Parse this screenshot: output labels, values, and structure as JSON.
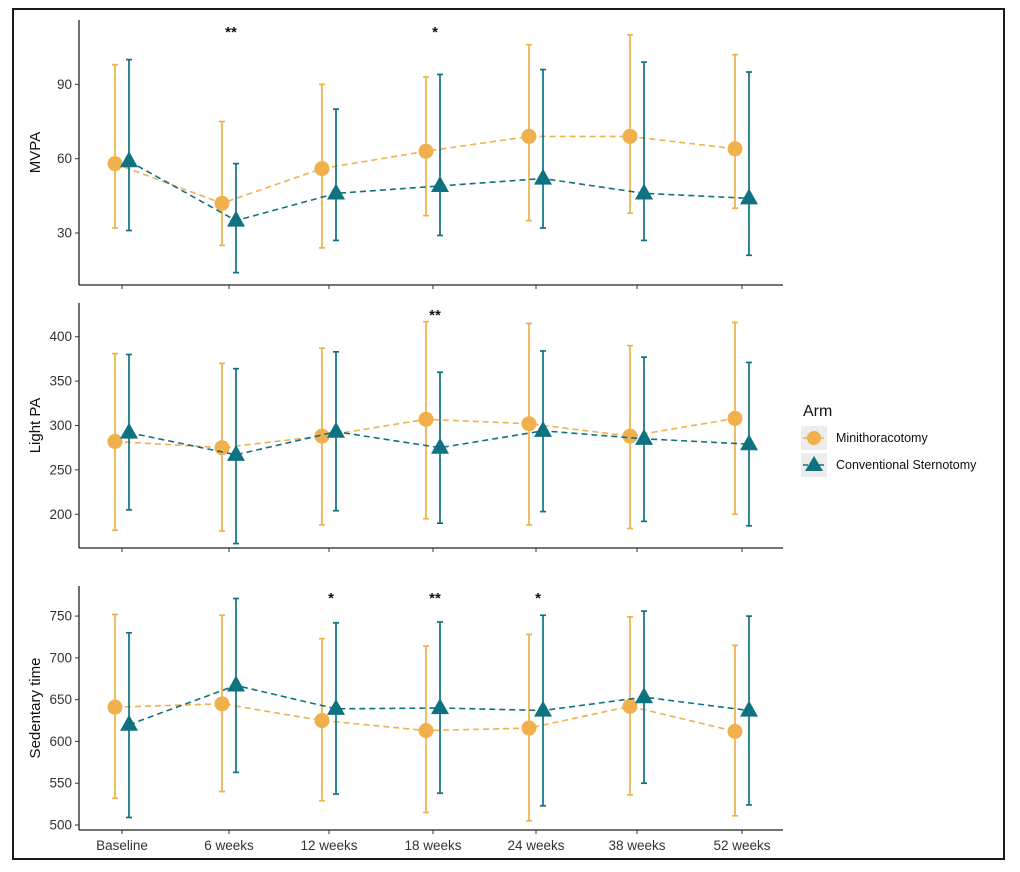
{
  "chart_data": {
    "type": "line",
    "categories": [
      "Baseline",
      "6 weeks",
      "12 weeks",
      "18 weeks",
      "24 weeks",
      "38 weeks",
      "52 weeks"
    ],
    "legend": {
      "title": "Arm",
      "placement": "right",
      "entries": [
        "Minithoracotomy",
        "Conventional Sternotomy"
      ]
    },
    "colors": {
      "Minithoracotomy": "#f0b04b",
      "Conventional Sternotomy": "#0f7281"
    },
    "panels": [
      {
        "ylabel": "MVPA",
        "ylim": [
          9,
          116
        ],
        "yticks": [
          30,
          60,
          90
        ],
        "significance": [
          "",
          "**",
          "",
          "*",
          "",
          "",
          ""
        ],
        "series": [
          {
            "name": "Minithoracotomy",
            "marker": "circle",
            "values": [
              58,
              42,
              56,
              63,
              69,
              69,
              64
            ],
            "lower": [
              32,
              25,
              24,
              37,
              35,
              38,
              40
            ],
            "upper": [
              98,
              75,
              90,
              93,
              106,
              110,
              102
            ]
          },
          {
            "name": "Conventional Sternotomy",
            "marker": "triangle",
            "values": [
              59,
              35,
              46,
              49,
              52,
              46,
              44
            ],
            "lower": [
              31,
              14,
              27,
              29,
              32,
              27,
              21
            ],
            "upper": [
              100,
              58,
              80,
              94,
              96,
              99,
              95
            ]
          }
        ]
      },
      {
        "ylabel": "Light PA",
        "ylim": [
          162,
          438
        ],
        "yticks": [
          200,
          250,
          300,
          350,
          400
        ],
        "significance": [
          "",
          "",
          "",
          "**",
          "",
          "",
          ""
        ],
        "series": [
          {
            "name": "Minithoracotomy",
            "marker": "circle",
            "values": [
              282,
              275,
              288,
              307,
              302,
              288,
              308
            ],
            "lower": [
              182,
              181,
              188,
              195,
              188,
              184,
              200
            ],
            "upper": [
              381,
              370,
              387,
              417,
              415,
              390,
              416
            ]
          },
          {
            "name": "Conventional Sternotomy",
            "marker": "triangle",
            "values": [
              292,
              267,
              293,
              275,
              294,
              285,
              279
            ],
            "lower": [
              205,
              167,
              204,
              190,
              203,
              192,
              187
            ],
            "upper": [
              380,
              364,
              383,
              360,
              384,
              377,
              371
            ]
          }
        ]
      },
      {
        "ylabel": "Sedentary time",
        "ylim": [
          494,
          786
        ],
        "yticks": [
          500,
          550,
          600,
          650,
          700,
          750
        ],
        "significance": [
          "",
          "",
          "*",
          "**",
          "*",
          "",
          ""
        ],
        "series": [
          {
            "name": "Minithoracotomy",
            "marker": "circle",
            "values": [
              641,
              645,
              625,
              613,
              616,
              642,
              612
            ],
            "lower": [
              532,
              540,
              529,
              515,
              505,
              536,
              511
            ],
            "upper": [
              752,
              751,
              723,
              714,
              728,
              749,
              715
            ]
          },
          {
            "name": "Conventional Sternotomy",
            "marker": "triangle",
            "values": [
              620,
              667,
              639,
              640,
              637,
              653,
              637
            ],
            "lower": [
              509,
              563,
              537,
              538,
              523,
              550,
              524
            ],
            "upper": [
              730,
              771,
              742,
              743,
              751,
              756,
              750
            ]
          }
        ]
      }
    ]
  }
}
